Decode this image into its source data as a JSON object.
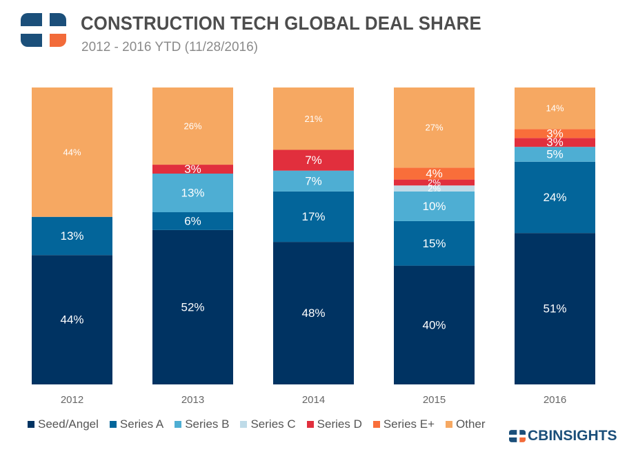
{
  "header": {
    "title": "CONSTRUCTION TECH GLOBAL DEAL SHARE",
    "subtitle": "2012 - 2016 YTD (11/28/2016)"
  },
  "brand": {
    "name": "CBINSIGHTS"
  },
  "colors": {
    "Seed/Angel": "#003362",
    "Series A": "#03659a",
    "Series B": "#4eaed3",
    "Series C": "#bfdbe8",
    "Series D": "#e12f3d",
    "Series E+": "#f96e3a",
    "Other": "#f6a862",
    "logo_dark": "#1b4f7a",
    "logo_orange": "#f26b3a"
  },
  "chart_data": {
    "type": "bar",
    "stacked": true,
    "title": "CONSTRUCTION TECH GLOBAL DEAL SHARE",
    "subtitle": "2012 - 2016 YTD (11/28/2016)",
    "xlabel": "",
    "ylabel": "",
    "ylim": [
      0,
      100
    ],
    "grid": false,
    "legend_position": "bottom",
    "categories": [
      "2012",
      "2013",
      "2014",
      "2015",
      "2016"
    ],
    "series": [
      {
        "name": "Seed/Angel",
        "values": [
          44,
          52,
          48,
          40,
          51
        ],
        "labels": [
          "44%",
          "52%",
          "48%",
          "40%",
          "51%"
        ]
      },
      {
        "name": "Series A",
        "values": [
          13,
          6,
          17,
          15,
          24
        ],
        "labels": [
          "13%",
          "6%",
          "17%",
          "15%",
          "24%"
        ]
      },
      {
        "name": "Series B",
        "values": [
          0,
          13,
          7,
          10,
          5
        ],
        "labels": [
          "",
          "13%",
          "7%",
          "10%",
          "5%"
        ]
      },
      {
        "name": "Series C",
        "values": [
          0,
          0,
          0,
          2,
          0
        ],
        "labels": [
          "",
          "",
          "",
          "2%",
          ""
        ]
      },
      {
        "name": "Series D",
        "values": [
          0,
          3,
          7,
          2,
          3
        ],
        "labels": [
          "",
          "3%",
          "7%",
          "2%",
          "3%"
        ]
      },
      {
        "name": "Series E+",
        "values": [
          0,
          0,
          0,
          4,
          3
        ],
        "labels": [
          "",
          "",
          "",
          "4%",
          "3%"
        ]
      },
      {
        "name": "Other",
        "values": [
          44,
          26,
          21,
          27,
          14
        ],
        "labels": [
          "44%",
          "26%",
          "21%",
          "27%",
          "14%"
        ]
      }
    ]
  }
}
